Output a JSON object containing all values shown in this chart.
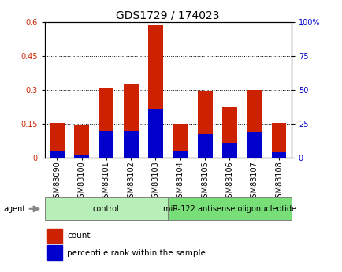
{
  "title": "GDS1729 / 174023",
  "samples": [
    "GSM83090",
    "GSM83100",
    "GSM83101",
    "GSM83102",
    "GSM83103",
    "GSM83104",
    "GSM83105",
    "GSM83106",
    "GSM83107",
    "GSM83108"
  ],
  "count_values": [
    0.155,
    0.148,
    0.31,
    0.325,
    0.585,
    0.15,
    0.292,
    0.222,
    0.3,
    0.155
  ],
  "percentile_values": [
    0.03,
    0.014,
    0.12,
    0.12,
    0.215,
    0.03,
    0.105,
    0.065,
    0.11,
    0.025
  ],
  "groups": [
    {
      "label": "control",
      "start": 0,
      "end": 5,
      "color": "#b8eeb8"
    },
    {
      "label": "miR-122 antisense oligonucleotide",
      "start": 5,
      "end": 10,
      "color": "#78de78"
    }
  ],
  "ylim_left": [
    0,
    0.6
  ],
  "ylim_right": [
    0,
    100
  ],
  "yticks_left": [
    0,
    0.15,
    0.3,
    0.45,
    0.6
  ],
  "ytick_labels_left": [
    "0",
    "0.15",
    "0.3",
    "0.45",
    "0.6"
  ],
  "yticks_right": [
    0,
    25,
    50,
    75,
    100
  ],
  "ytick_labels_right": [
    "0",
    "25",
    "50",
    "75",
    "100%"
  ],
  "bar_color_count": "#cc2200",
  "bar_color_percentile": "#0000cc",
  "bar_width": 0.6,
  "title_fontsize": 10,
  "tick_fontsize": 7,
  "label_fontsize": 8,
  "legend_count_label": "count",
  "legend_percentile_label": "percentile rank within the sample",
  "agent_label": "agent",
  "group_bar_bg": "#dddddd",
  "plot_bg": "#ffffff"
}
